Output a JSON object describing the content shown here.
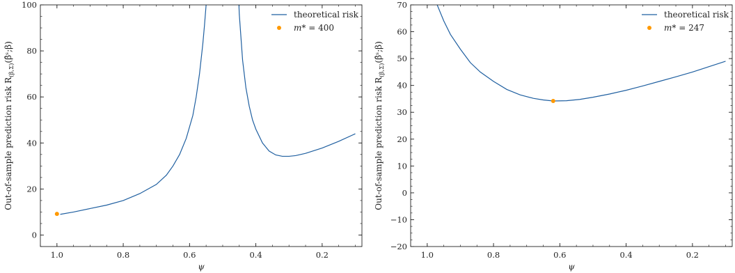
{
  "chart_data": [
    {
      "type": "line",
      "xlabel": "ψ",
      "ylabel": "Out-of-sample prediction risk R",
      "ylabel_sub": "(β,Σ)",
      "ylabel_tail": "(β̂ˢ;β)",
      "xlim": [
        1.05,
        0.08
      ],
      "ylim": [
        -5,
        100
      ],
      "xticks": [
        1.0,
        0.8,
        0.6,
        0.4,
        0.2
      ],
      "xtick_labels": [
        "1.0",
        "0.8",
        "0.6",
        "0.4",
        "0.2"
      ],
      "yticks": [
        0,
        20,
        40,
        60,
        80,
        100
      ],
      "ytick_labels": [
        "0",
        "20",
        "40",
        "60",
        "80",
        "100"
      ],
      "legend": {
        "location": "upper right",
        "line_label": "theoretical risk",
        "point_label_prefix": "m",
        "point_label_suffix": "* = 400"
      },
      "series": [
        {
          "name": "theoretical risk",
          "color": "#1f5fa0",
          "x": [
            0.99,
            0.95,
            0.9,
            0.85,
            0.8,
            0.75,
            0.7,
            0.67,
            0.65,
            0.63,
            0.61,
            0.59,
            0.58,
            0.57,
            0.56,
            0.555,
            0.55,
            0.545
          ],
          "y": [
            9,
            10,
            11.5,
            13,
            15,
            18,
            22,
            26,
            30,
            35,
            42,
            52,
            60,
            70,
            83,
            91,
            100,
            115
          ]
        },
        {
          "name": "theoretical risk",
          "color": "#1f5fa0",
          "x": [
            0.455,
            0.45,
            0.44,
            0.43,
            0.42,
            0.41,
            0.4,
            0.38,
            0.36,
            0.34,
            0.32,
            0.3,
            0.28,
            0.25,
            0.2,
            0.15,
            0.1
          ],
          "y": [
            115,
            96,
            76,
            64,
            56,
            50,
            46,
            40,
            36.5,
            34.8,
            34.2,
            34.2,
            34.5,
            35.5,
            37.8,
            40.7,
            44
          ]
        }
      ],
      "points": [
        {
          "name": "m* = 400",
          "color": "#ff9900",
          "x": 1.0,
          "y": 9.2
        }
      ]
    },
    {
      "type": "line",
      "xlabel": "ψ",
      "ylabel": "Out-of-sample prediction risk R",
      "ylabel_sub": "(β,Σ)",
      "ylabel_tail": "(β̂ˢ;β)",
      "xlim": [
        1.05,
        0.08
      ],
      "ylim": [
        -20,
        70
      ],
      "xticks": [
        1.0,
        0.8,
        0.6,
        0.4,
        0.2
      ],
      "xtick_labels": [
        "1.0",
        "0.8",
        "0.6",
        "0.4",
        "0.2"
      ],
      "yticks": [
        -20,
        -10,
        0,
        10,
        20,
        30,
        40,
        50,
        60,
        70
      ],
      "ytick_labels": [
        "−20",
        "−10",
        "0",
        "10",
        "20",
        "30",
        "40",
        "50",
        "60",
        "70"
      ],
      "legend": {
        "location": "upper right",
        "line_label": "theoretical risk",
        "point_label_prefix": "m",
        "point_label_suffix": "* = 247"
      },
      "series": [
        {
          "name": "theoretical risk",
          "color": "#1f5fa0",
          "x": [
            0.97,
            0.95,
            0.93,
            0.9,
            0.87,
            0.84,
            0.8,
            0.76,
            0.72,
            0.68,
            0.65,
            0.62,
            0.58,
            0.54,
            0.5,
            0.45,
            0.4,
            0.35,
            0.3,
            0.25,
            0.2,
            0.15,
            0.1
          ],
          "y": [
            70,
            64,
            59,
            53.5,
            48.5,
            45,
            41.5,
            38.5,
            36.5,
            35.2,
            34.6,
            34.2,
            34.3,
            34.8,
            35.6,
            36.8,
            38.2,
            39.8,
            41.5,
            43.2,
            45.0,
            47.0,
            49.0
          ]
        }
      ],
      "points": [
        {
          "name": "m* = 247",
          "color": "#ff9900",
          "x": 0.62,
          "y": 34.2
        }
      ]
    }
  ]
}
